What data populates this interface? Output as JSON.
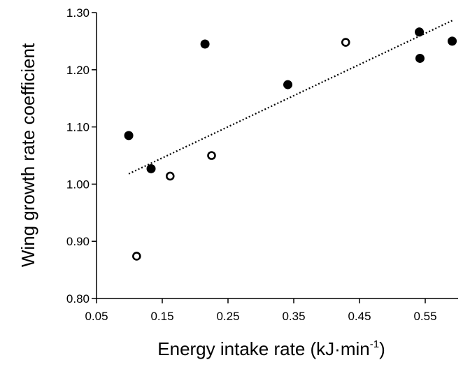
{
  "chart_data": {
    "type": "scatter",
    "xlabel": "Energy intake rate (kJ·min",
    "xlabel_superscript": "-1",
    "xlabel_suffix": ")",
    "ylabel": "Wing growth rate coefficient",
    "xlim": [
      0.05,
      0.6
    ],
    "ylim": [
      0.8,
      1.3
    ],
    "xticks": [
      "0.05",
      "0.15",
      "0.25",
      "0.35",
      "0.45",
      "0.55"
    ],
    "yticks": [
      "0.80",
      "0.90",
      "1.00",
      "1.10",
      "1.20",
      "1.30"
    ],
    "grid": false,
    "legend": "none",
    "series": [
      {
        "marker": "filled-circle",
        "color": "#000000",
        "x": [
          0.099,
          0.133,
          0.215,
          0.341,
          0.541,
          0.542,
          0.591
        ],
        "y": [
          1.085,
          1.027,
          1.245,
          1.174,
          1.266,
          1.22,
          1.25
        ]
      },
      {
        "marker": "open-circle",
        "color": "#000000",
        "x": [
          0.111,
          0.162,
          0.225,
          0.429
        ],
        "y": [
          0.874,
          1.014,
          1.05,
          1.248
        ]
      }
    ],
    "trendline": {
      "style": "dotted",
      "color": "#000000",
      "x": [
        0.099,
        0.591
      ],
      "y": [
        1.018,
        1.286
      ]
    }
  }
}
